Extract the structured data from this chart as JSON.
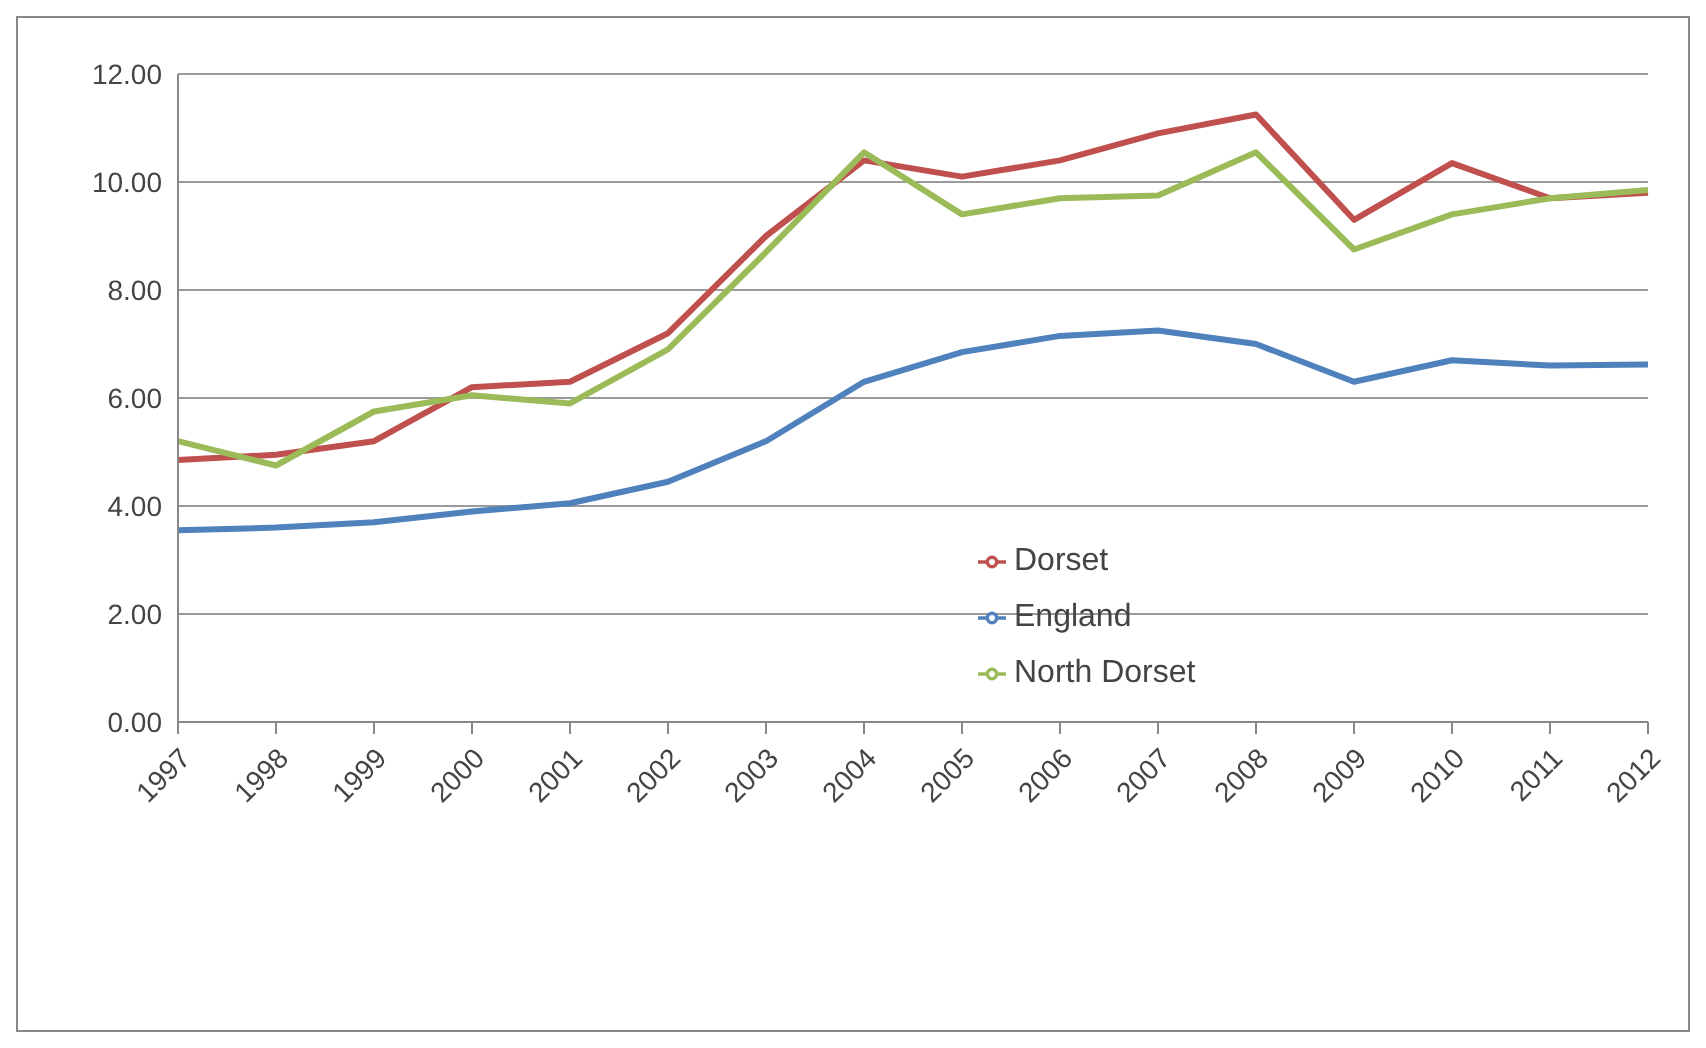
{
  "chart_data": {
    "type": "line",
    "categories": [
      "1997",
      "1998",
      "1999",
      "2000",
      "2001",
      "2002",
      "2003",
      "2004",
      "2005",
      "2006",
      "2007",
      "2008",
      "2009",
      "2010",
      "2011",
      "2012"
    ],
    "series": [
      {
        "name": "England",
        "color": "#4f81bd",
        "values": [
          3.55,
          3.6,
          3.7,
          3.9,
          4.05,
          4.45,
          5.2,
          6.3,
          6.85,
          7.15,
          7.25,
          7.0,
          6.3,
          6.7,
          6.6,
          6.62
        ]
      },
      {
        "name": "Dorset",
        "color": "#c0504d",
        "values": [
          4.85,
          4.95,
          5.2,
          6.2,
          6.3,
          7.2,
          9.0,
          10.4,
          10.1,
          10.4,
          10.9,
          11.25,
          9.3,
          10.35,
          9.7,
          9.8
        ]
      },
      {
        "name": "North Dorset",
        "color": "#9bbb59",
        "values": [
          5.2,
          4.75,
          5.75,
          6.05,
          5.9,
          6.9,
          8.7,
          10.55,
          9.4,
          9.7,
          9.75,
          10.55,
          8.75,
          9.4,
          9.7,
          9.85
        ]
      }
    ],
    "ylim": [
      0,
      12
    ],
    "yticks": [
      {
        "value": 0,
        "label": "0.00"
      },
      {
        "value": 2,
        "label": "2.00"
      },
      {
        "value": 4,
        "label": "4.00"
      },
      {
        "value": 6,
        "label": "6.00"
      },
      {
        "value": 8,
        "label": "8.00"
      },
      {
        "value": 10,
        "label": "10.00"
      },
      {
        "value": 12,
        "label": "12.00"
      }
    ],
    "grid": "y",
    "legend": "center",
    "marker": "none",
    "line_style": "solid"
  }
}
